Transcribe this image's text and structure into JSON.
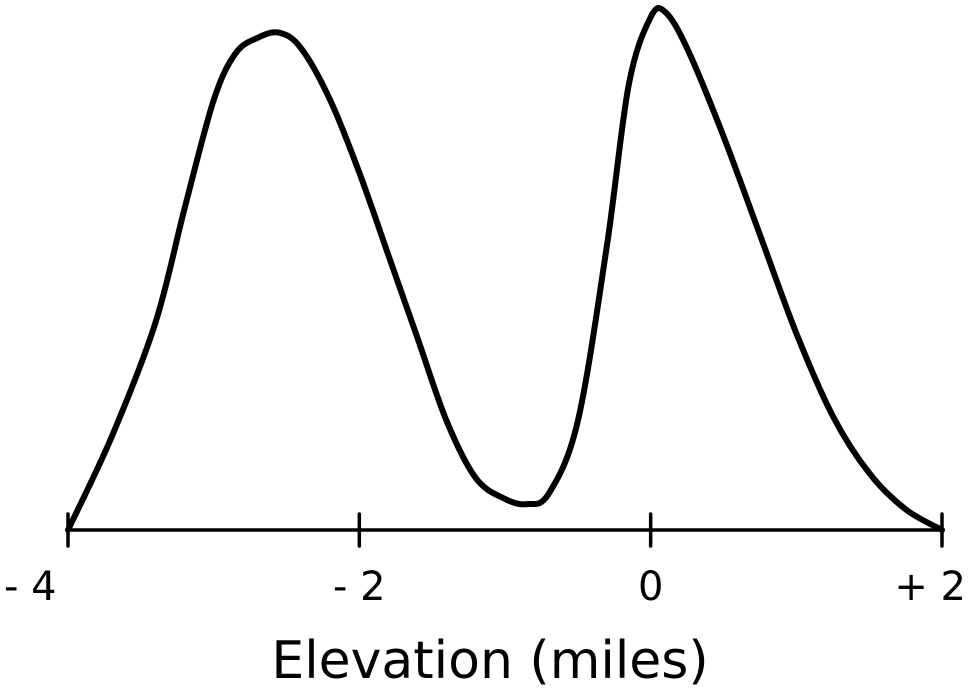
{
  "chart_data": {
    "type": "line",
    "title": "",
    "xlabel": "Elevation (miles)",
    "ylabel": "",
    "xlim": [
      -4,
      2
    ],
    "ylim": [
      0,
      1
    ],
    "grid": false,
    "x_ticks": [
      -4,
      -2,
      0,
      2
    ],
    "x_tick_labels": [
      "- 4",
      "- 2",
      "0",
      "+ 2"
    ],
    "series": [
      {
        "x": [
          -4.0,
          -3.7,
          -3.4,
          -3.2,
          -3.0,
          -2.85,
          -2.7,
          -2.55,
          -2.4,
          -2.2,
          -2.0,
          -1.8,
          -1.6,
          -1.4,
          -1.2,
          -1.0,
          -0.85,
          -0.7,
          -0.5,
          -0.3,
          -0.15,
          0.0,
          0.1,
          0.25,
          0.5,
          0.75,
          1.0,
          1.25,
          1.5,
          1.75,
          2.0
        ],
        "y": [
          0.0,
          0.18,
          0.4,
          0.62,
          0.83,
          0.92,
          0.95,
          0.96,
          0.93,
          0.83,
          0.69,
          0.53,
          0.37,
          0.21,
          0.1,
          0.06,
          0.05,
          0.07,
          0.21,
          0.55,
          0.86,
          0.99,
          1.0,
          0.93,
          0.76,
          0.57,
          0.38,
          0.22,
          0.11,
          0.04,
          0.0
        ]
      }
    ]
  }
}
